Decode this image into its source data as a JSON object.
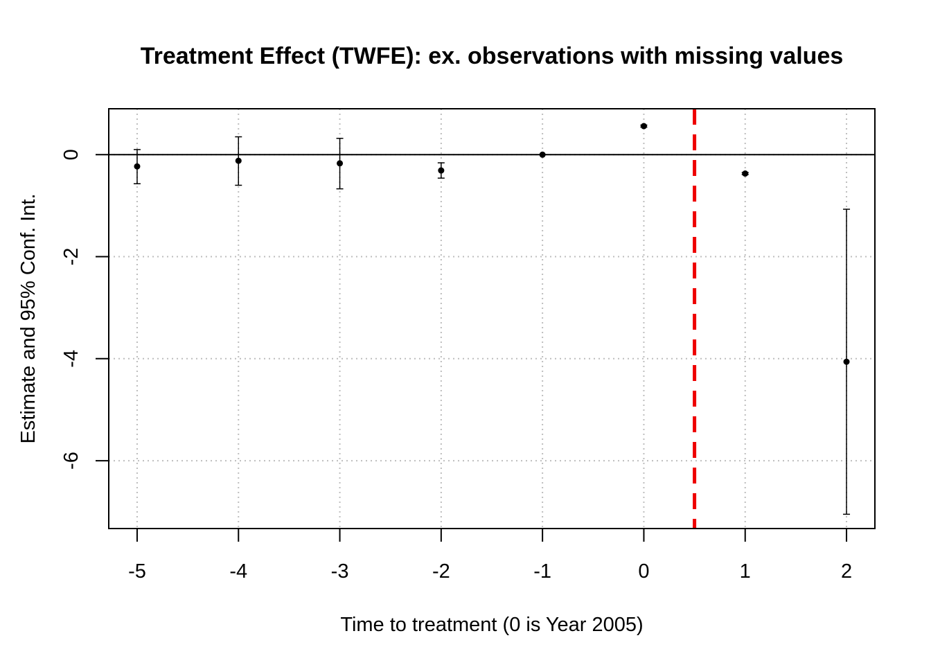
{
  "chart_data": {
    "type": "scatter",
    "title": "Treatment Effect (TWFE): ex. observations with missing values",
    "xlabel": "Time to treatment (0 is Year 2005)",
    "ylabel": "Estimate and 95% Conf. Int.",
    "xlim": [
      -5.28,
      2.28
    ],
    "ylim": [
      -7.33,
      0.9
    ],
    "x_ticks": [
      -5,
      -4,
      -3,
      -2,
      -1,
      0,
      1,
      2
    ],
    "x_tick_labels": [
      "-5",
      "-4",
      "-3",
      "-2",
      "-1",
      "0",
      "1",
      "2"
    ],
    "y_ticks": [
      0,
      -2,
      -4,
      -6
    ],
    "y_tick_labels": [
      "0",
      "-2",
      "-4",
      "-6"
    ],
    "grid": true,
    "reference_hline": 0,
    "reference_vline": {
      "x": 0.5,
      "color": "#ee0000",
      "style": "dashed"
    },
    "points": [
      {
        "x": -5,
        "estimate": -0.23,
        "ci_low": -0.57,
        "ci_high": 0.1
      },
      {
        "x": -4,
        "estimate": -0.12,
        "ci_low": -0.6,
        "ci_high": 0.35
      },
      {
        "x": -3,
        "estimate": -0.17,
        "ci_low": -0.67,
        "ci_high": 0.32
      },
      {
        "x": -2,
        "estimate": -0.31,
        "ci_low": -0.46,
        "ci_high": -0.16
      },
      {
        "x": -1,
        "estimate": 0.0,
        "ci_low": 0.0,
        "ci_high": 0.0
      },
      {
        "x": 0,
        "estimate": 0.56,
        "ci_low": 0.54,
        "ci_high": 0.58
      },
      {
        "x": 1,
        "estimate": -0.37,
        "ci_low": -0.39,
        "ci_high": -0.35
      },
      {
        "x": 2,
        "estimate": -4.06,
        "ci_low": -7.05,
        "ci_high": -1.07
      }
    ]
  }
}
